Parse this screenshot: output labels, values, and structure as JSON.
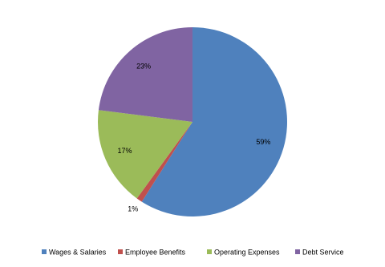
{
  "chart_data": {
    "type": "pie",
    "categories": [
      "Wages & Salaries",
      "Employee Benefits",
      "Operating Expenses",
      "Debt Service"
    ],
    "values": [
      59,
      1,
      17,
      23
    ],
    "value_labels": [
      "59%",
      "1%",
      "17%",
      "23%"
    ],
    "colors": [
      "#4f81bd",
      "#c0504d",
      "#9bbb59",
      "#8064a2"
    ],
    "legend": "bottom"
  }
}
